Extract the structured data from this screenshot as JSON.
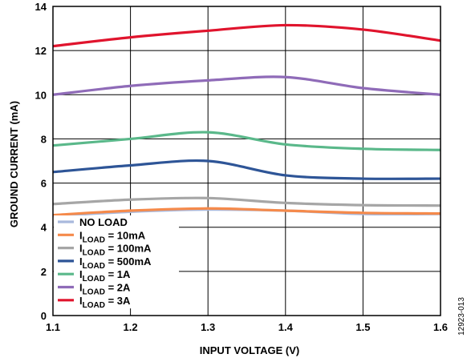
{
  "chart_data": {
    "type": "line",
    "xlabel": "INPUT VOLTAGE (V)",
    "ylabel": "GROUND CURRENT (mA)",
    "xlim": [
      1.1,
      1.6
    ],
    "ylim": [
      0,
      14
    ],
    "x_ticks": [
      "1.1",
      "1.2",
      "1.3",
      "1.4",
      "1.5",
      "1.6"
    ],
    "y_ticks": [
      "0",
      "2",
      "4",
      "6",
      "8",
      "10",
      "12",
      "14"
    ],
    "grid": true,
    "legend_position": "bottom-left",
    "series": [
      {
        "name": "NO LOAD",
        "label_main": "NO LOAD",
        "label_sub": "",
        "label_tail": "",
        "color": "#a9b9dd",
        "x": [
          1.1,
          1.2,
          1.3,
          1.4,
          1.5,
          1.6
        ],
        "values": [
          4.5,
          4.7,
          4.8,
          4.75,
          4.6,
          4.6
        ]
      },
      {
        "name": "ILOAD = 10mA",
        "label_main": "I",
        "label_sub": "LOAD",
        "label_tail": " = 10mA",
        "color": "#f58a4b",
        "x": [
          1.1,
          1.2,
          1.3,
          1.4,
          1.5,
          1.6
        ],
        "values": [
          4.55,
          4.75,
          4.85,
          4.75,
          4.65,
          4.62
        ]
      },
      {
        "name": "ILOAD = 100mA",
        "label_main": "I",
        "label_sub": "LOAD",
        "label_tail": " = 100mA",
        "color": "#a6a6a6",
        "x": [
          1.1,
          1.2,
          1.3,
          1.4,
          1.5,
          1.6
        ],
        "values": [
          5.05,
          5.25,
          5.32,
          5.1,
          5.0,
          4.98
        ]
      },
      {
        "name": "ILOAD = 500mA",
        "label_main": "I",
        "label_sub": "LOAD",
        "label_tail": " = 500mA",
        "color": "#2e5597",
        "x": [
          1.1,
          1.2,
          1.3,
          1.4,
          1.5,
          1.6
        ],
        "values": [
          6.5,
          6.8,
          7.0,
          6.35,
          6.2,
          6.2
        ]
      },
      {
        "name": "ILOAD = 1A",
        "label_main": "I",
        "label_sub": "LOAD",
        "label_tail": " = 1A",
        "color": "#5ab88a",
        "x": [
          1.1,
          1.2,
          1.3,
          1.4,
          1.5,
          1.6
        ],
        "values": [
          7.7,
          8.0,
          8.3,
          7.75,
          7.55,
          7.5
        ]
      },
      {
        "name": "ILOAD = 2A",
        "label_main": "I",
        "label_sub": "LOAD",
        "label_tail": " = 2A",
        "color": "#8f6bb8",
        "x": [
          1.1,
          1.2,
          1.3,
          1.4,
          1.5,
          1.6
        ],
        "values": [
          10.0,
          10.4,
          10.65,
          10.8,
          10.3,
          10.0
        ]
      },
      {
        "name": "ILOAD = 3A",
        "label_main": "I",
        "label_sub": "LOAD",
        "label_tail": " = 3A",
        "color": "#e0142d",
        "x": [
          1.1,
          1.2,
          1.3,
          1.4,
          1.5,
          1.6
        ],
        "values": [
          12.2,
          12.6,
          12.9,
          13.15,
          12.95,
          12.45
        ]
      }
    ]
  },
  "figure_code": "12923-013"
}
